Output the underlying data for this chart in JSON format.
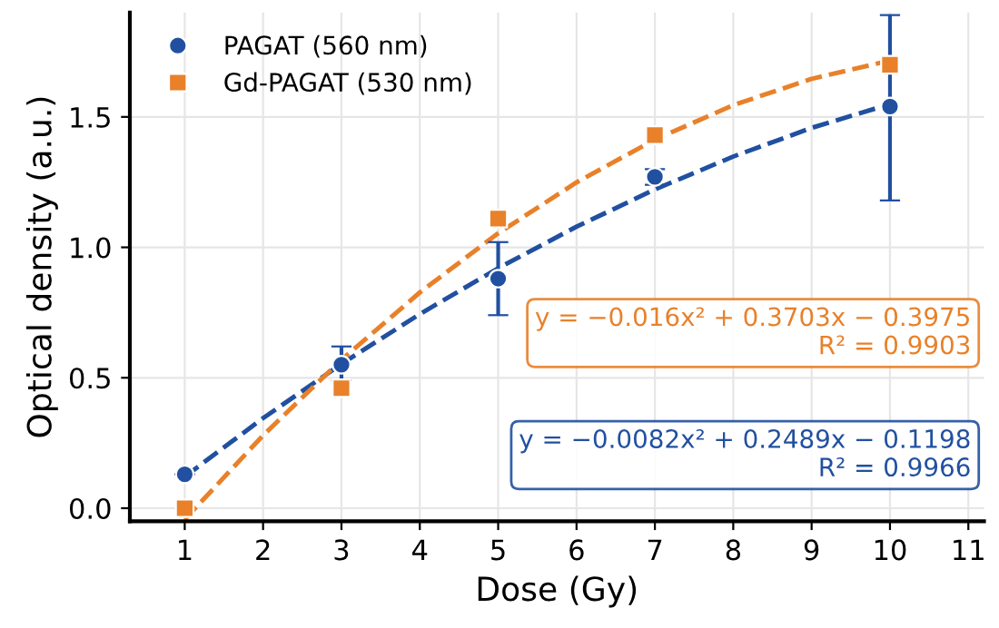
{
  "chart_data": {
    "type": "scatter",
    "xlabel": "Dose (Gy)",
    "ylabel": "Optical density (a.u.)",
    "xlim": [
      0.3,
      11.2
    ],
    "xticks": [
      1,
      2,
      3,
      4,
      5,
      6,
      7,
      8,
      9,
      10,
      11
    ],
    "ylim": [
      -0.05,
      1.9
    ],
    "yticks": [
      {
        "value": 0,
        "label": "0.0"
      },
      {
        "value": 0.5,
        "label": "0.5"
      },
      {
        "value": 1.0,
        "label": "1.0"
      },
      {
        "value": 1.5,
        "label": "1.5"
      }
    ],
    "grid": true,
    "legend": "top left",
    "series": [
      {
        "type": "line",
        "color": "#2150a0",
        "line_style": "dashed",
        "marker": "none",
        "x": [
          1,
          2,
          3,
          4,
          5,
          6,
          7,
          8,
          9,
          10
        ],
        "values": [
          0.121,
          0.345,
          0.553,
          0.744,
          0.92,
          1.079,
          1.222,
          1.348,
          1.458,
          1.549
        ]
      },
      {
        "type": "line",
        "color": "#e8812a",
        "line_style": "dashed",
        "marker": "none",
        "x": [
          1,
          2,
          3,
          4,
          5,
          6,
          7,
          8,
          9,
          10
        ],
        "values": [
          -0.043,
          0.279,
          0.569,
          0.827,
          1.054,
          1.249,
          1.413,
          1.545,
          1.646,
          1.716
        ]
      },
      {
        "name": "PAGAT (560 nm)",
        "color": "#2150a0",
        "marker": "circle",
        "x": [
          1,
          3,
          5,
          7,
          10
        ],
        "values": [
          0.13,
          0.55,
          0.88,
          1.27,
          1.54
        ],
        "errors": [
          null,
          [
            0.49,
            0.62
          ],
          [
            0.74,
            1.02
          ],
          [
            1.24,
            1.3
          ],
          [
            1.18,
            1.89
          ]
        ]
      },
      {
        "name": "Gd-PAGAT (530 nm)",
        "color": "#e8812a",
        "marker": "square",
        "x": [
          1,
          3,
          5,
          7,
          10
        ],
        "values": [
          0.0,
          0.46,
          1.11,
          1.43,
          1.7
        ]
      }
    ],
    "annotations": [
      "y = −0.016x² + 0.3703x − 0.3975\nR² = 0.9903",
      "y = −0.0082x² + 0.2489x − 0.1198\nR² = 0.9966"
    ]
  }
}
